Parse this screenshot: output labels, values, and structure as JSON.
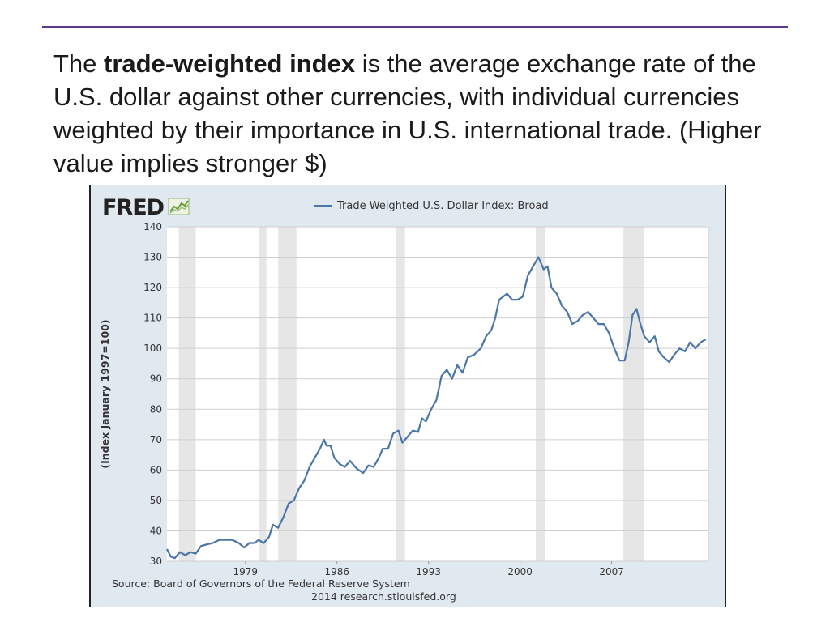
{
  "slide": {
    "intro_prefix": "The ",
    "intro_bold": "trade-weighted index",
    "intro_rest": " is the average exchange rate of the U.S. dollar against other currencies, with individual currencies weighted by their importance in U.S. international trade.   (Higher value implies stronger $)"
  },
  "colors": {
    "rule": "#5b3a8e",
    "line": "#4a76a8",
    "plot_bg": "#ffffff",
    "frame_bg": "#e1e9f0",
    "recession": "#e6e6e6"
  },
  "chart_data": {
    "type": "line",
    "logo": "FRED",
    "title": "",
    "ylabel": "(Index January 1997=100)",
    "xlabel": "",
    "ylim": [
      30,
      140
    ],
    "yticks": [
      30,
      40,
      50,
      60,
      70,
      80,
      90,
      100,
      110,
      120,
      130,
      140
    ],
    "xlim": [
      1973.0,
      2014.4
    ],
    "xticks": [
      1979,
      1986,
      1993,
      2000,
      2007
    ],
    "grid": "horizontal",
    "recessions": [
      [
        1973.9,
        1975.2
      ],
      [
        1980.0,
        1980.6
      ],
      [
        1981.5,
        1982.9
      ],
      [
        1990.5,
        1991.2
      ],
      [
        2001.2,
        2001.9
      ],
      [
        2007.9,
        2009.5
      ]
    ],
    "series": [
      {
        "name": "Trade Weighted U.S. Dollar Index: Broad",
        "x": [
          1973.0,
          1973.3,
          1973.6,
          1974.0,
          1974.4,
          1974.8,
          1975.2,
          1975.6,
          1976.0,
          1976.5,
          1977.0,
          1977.5,
          1978.0,
          1978.5,
          1978.9,
          1979.3,
          1979.7,
          1980.0,
          1980.4,
          1980.8,
          1981.1,
          1981.5,
          1981.9,
          1982.3,
          1982.7,
          1983.1,
          1983.5,
          1983.9,
          1984.3,
          1984.7,
          1985.0,
          1985.2,
          1985.5,
          1985.8,
          1986.2,
          1986.6,
          1987.0,
          1987.5,
          1988.0,
          1988.4,
          1988.8,
          1989.2,
          1989.5,
          1989.9,
          1990.3,
          1990.7,
          1991.0,
          1991.4,
          1991.8,
          1992.2,
          1992.5,
          1992.8,
          1993.2,
          1993.6,
          1994.0,
          1994.4,
          1994.8,
          1995.2,
          1995.6,
          1996.0,
          1996.5,
          1997.0,
          1997.4,
          1997.8,
          1998.1,
          1998.4,
          1998.7,
          1999.0,
          1999.4,
          1999.8,
          2000.2,
          2000.6,
          2001.0,
          2001.4,
          2001.8,
          2002.1,
          2002.4,
          2002.8,
          2003.2,
          2003.6,
          2004.0,
          2004.4,
          2004.8,
          2005.2,
          2005.6,
          2006.0,
          2006.4,
          2006.8,
          2007.2,
          2007.6,
          2008.0,
          2008.3,
          2008.6,
          2008.9,
          2009.2,
          2009.5,
          2009.9,
          2010.3,
          2010.6,
          2011.0,
          2011.4,
          2011.8,
          2012.2,
          2012.6,
          2013.0,
          2013.4,
          2013.8,
          2014.2
        ],
        "values": [
          34,
          31.5,
          31,
          33,
          32,
          33,
          32.5,
          35,
          35.5,
          36,
          37,
          37,
          37,
          36,
          34.5,
          36,
          36,
          37,
          36,
          38,
          42,
          41,
          44.5,
          49,
          50,
          54,
          56.5,
          61,
          64,
          67,
          70,
          68,
          68,
          64,
          62,
          61,
          63,
          60.5,
          59,
          61.5,
          61,
          64,
          67,
          67,
          72,
          73,
          69,
          71,
          73,
          72.5,
          77,
          76,
          80,
          83,
          91,
          93,
          90,
          94.5,
          92,
          97,
          98,
          100,
          104,
          106,
          110,
          116,
          117,
          118,
          116,
          116,
          117,
          124,
          127,
          130,
          126,
          127,
          120,
          118,
          114,
          112,
          108,
          109,
          111,
          112,
          110,
          108,
          108,
          105,
          100,
          96,
          96,
          102,
          111,
          113,
          108,
          104,
          102,
          104,
          99,
          97,
          95.5,
          98,
          100,
          99,
          102,
          100,
          102,
          103
        ]
      }
    ]
  },
  "source": {
    "line1": "Source: Board of Governors of the Federal Reserve System",
    "line2": "2014 research.stlouisfed.org"
  }
}
